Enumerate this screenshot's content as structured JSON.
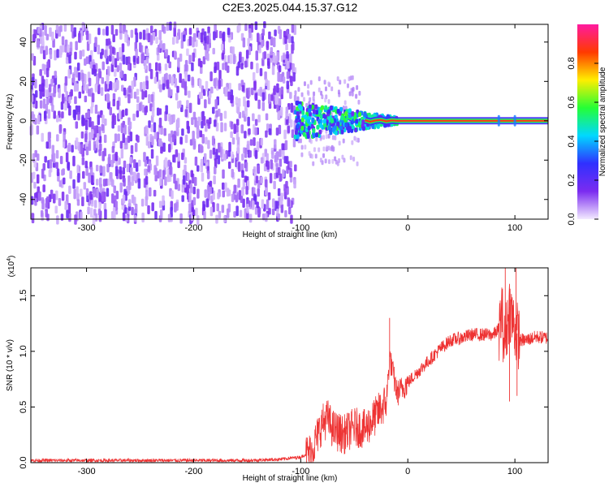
{
  "title": "C2E3.2025.044.15.37.G12",
  "chart_data": [
    {
      "type": "heatmap",
      "title": "C2E3.2025.044.15.37.G12",
      "xlabel": "Height of straight line (km)",
      "ylabel": "Frequency (Hz)",
      "xlim": [
        -352,
        131
      ],
      "ylim": [
        -50,
        49
      ],
      "xticks": [
        -300,
        -200,
        -100,
        0,
        100
      ],
      "yticks": [
        -40,
        -20,
        0,
        20,
        40
      ],
      "colorbar": {
        "label": "Normalized spectral amplitude",
        "range": [
          0,
          1
        ],
        "ticks": [
          "0.0",
          "0.2",
          "0.4",
          "0.6",
          "0.8"
        ],
        "tick_values": [
          0.0,
          0.2,
          0.4,
          0.6,
          0.8
        ],
        "colors": [
          "#f3eaff",
          "#7b2cf0",
          "#3030ff",
          "#00d8ff",
          "#25ff35",
          "#ffee00",
          "#ff3a00",
          "#ff1aa0"
        ]
      },
      "regions": [
        {
          "name": "noise",
          "x_range": [
            -352,
            -105
          ],
          "freq_range": [
            -50,
            49
          ],
          "amplitude_range": [
            0.0,
            0.12
          ]
        },
        {
          "name": "transition",
          "x_range": [
            -105,
            -10
          ],
          "freq_range": [
            -8,
            8
          ],
          "amplitude_range": [
            0.15,
            0.6
          ]
        },
        {
          "name": "carrier",
          "x_range": [
            -10,
            131
          ],
          "freq": 0,
          "amplitude": 1.0
        }
      ],
      "carrier_line": {
        "x": [
          -40,
          -35,
          -30,
          -25,
          -20,
          -15,
          -10,
          0,
          50,
          100,
          131
        ],
        "y": [
          0.3,
          -0.5,
          0.2,
          0.4,
          -0.3,
          0.2,
          0.0,
          0.0,
          0.0,
          0.0,
          0.0
        ]
      }
    },
    {
      "type": "line",
      "xlabel": "Height of straight line (km)",
      "ylabel": "SNR (10 * v/v)",
      "y_multiplier": "(x10",
      "y_multiplier_exp": "4",
      "y_multiplier_close": ")",
      "xlim": [
        -352,
        131
      ],
      "ylim": [
        0,
        1.75
      ],
      "xticks": [
        -300,
        -200,
        -100,
        0,
        100
      ],
      "yticks": [
        "0.0",
        "0.5",
        "1.0",
        "1.5"
      ],
      "ytick_values": [
        0.0,
        0.5,
        1.0,
        1.5
      ],
      "color": "#ee3333",
      "series": [
        {
          "x": [
            -352,
            -300,
            -250,
            -200,
            -150,
            -120,
            -100,
            -90,
            -80,
            -75,
            -70,
            -60,
            -50,
            -40,
            -30,
            -20,
            -17,
            -10,
            0,
            10,
            20,
            30,
            40,
            50,
            60,
            70,
            80,
            85,
            88,
            90,
            95,
            100,
            105,
            110,
            120,
            131
          ],
          "y": [
            0.02,
            0.02,
            0.02,
            0.02,
            0.02,
            0.03,
            0.05,
            0.1,
            0.35,
            0.4,
            0.3,
            0.25,
            0.32,
            0.3,
            0.42,
            0.55,
            0.95,
            0.62,
            0.72,
            0.82,
            0.92,
            1.02,
            1.1,
            1.12,
            1.15,
            1.15,
            1.15,
            1.2,
            1.35,
            1.05,
            1.4,
            1.2,
            1.1,
            1.1,
            1.13,
            1.12
          ]
        }
      ],
      "spikes": [
        {
          "x": -17,
          "y": 1.3
        },
        {
          "x": 91,
          "y": 1.75
        },
        {
          "x": 95,
          "y": 0.55
        },
        {
          "x": 101,
          "y": 1.75
        },
        {
          "x": 102,
          "y": 0.6
        }
      ]
    }
  ]
}
